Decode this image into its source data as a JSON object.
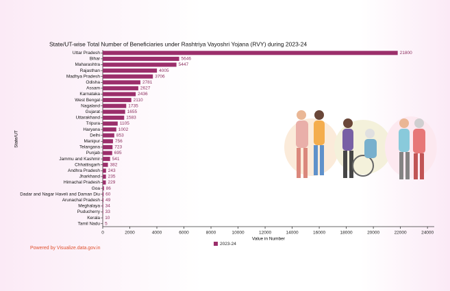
{
  "chart_data": {
    "type": "bar",
    "orientation": "horizontal",
    "title": "State/UT-wise Total Number of Beneficiaries under Rashtriya Vayoshri Yojana (RVY) during 2023-24",
    "x_label": "Value in Number",
    "y_label": "State/UT",
    "categories": [
      "Uttar Pradesh",
      "Bihar",
      "Maharashtra",
      "Rajasthan",
      "Madhya Pradesh",
      "Odisha",
      "Assam",
      "Karnataka",
      "West Bengal",
      "Nagaland",
      "Gujarat",
      "Uttarakhand",
      "Tripura",
      "Haryana",
      "Delhi",
      "Manipur",
      "Telangana",
      "Punjab",
      "Jammu and Kashmir",
      "Chhattisgarh",
      "Andhra Pradesh",
      "Jharkhand",
      "Himachal Pradesh",
      "Goa",
      "Dadar and Nagar Haveli and Daman Diu",
      "Arunachal Pradesh",
      "Meghalaya",
      "Puducherry",
      "Kerala",
      "Tamil Nadu"
    ],
    "series": [
      {
        "name": "2023-24",
        "color": "#9b2f6b",
        "values": [
          21800,
          5646,
          5447,
          4005,
          3706,
          2781,
          2627,
          2436,
          2110,
          1735,
          1655,
          1583,
          1105,
          1002,
          853,
          756,
          723,
          695,
          541,
          382,
          243,
          235,
          229,
          86,
          60,
          49,
          34,
          33,
          10,
          5
        ]
      }
    ],
    "xlim": [
      0,
      24500
    ],
    "xticks": [
      0,
      2000,
      4000,
      6000,
      8000,
      10000,
      12000,
      14000,
      16000,
      18000,
      20000,
      22000,
      24000
    ],
    "footer": "Powered by Visualize.data.gov.in"
  }
}
